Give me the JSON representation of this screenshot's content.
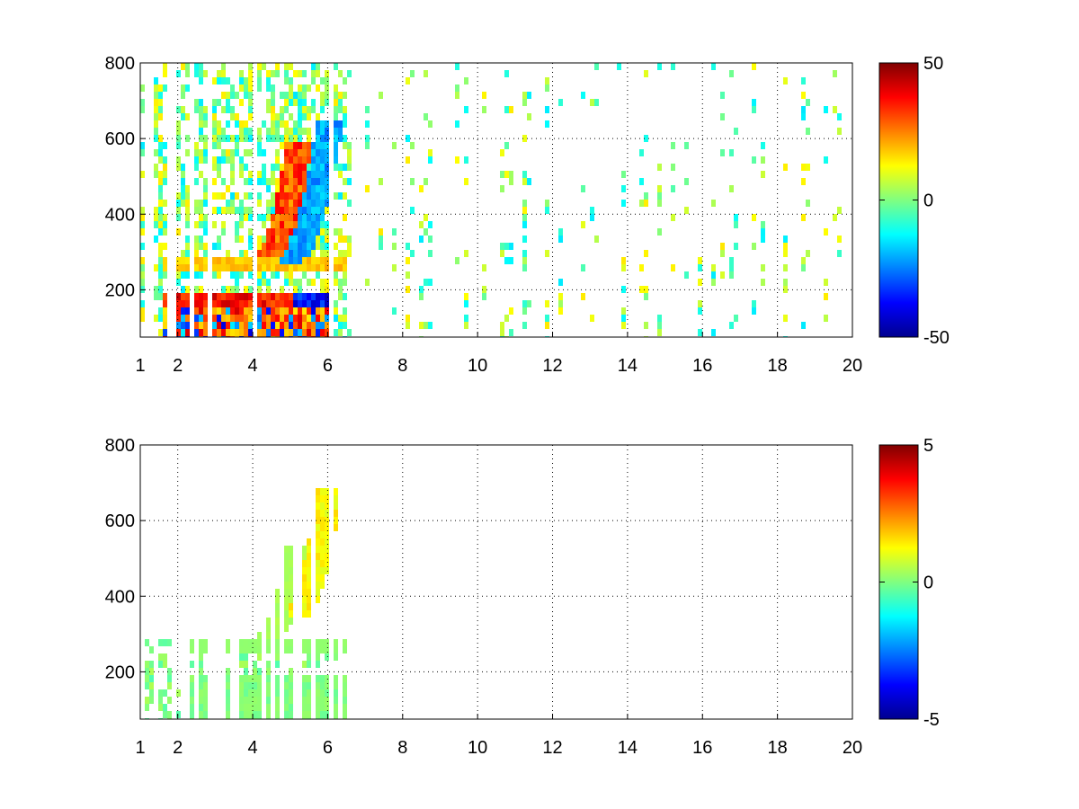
{
  "chart_data": [
    {
      "type": "heatmap",
      "title": "",
      "xlabel": "",
      "ylabel": "",
      "xlim": [
        1,
        20
      ],
      "ylim": [
        75,
        800
      ],
      "xticks": [
        1,
        2,
        4,
        6,
        8,
        10,
        12,
        14,
        16,
        18,
        20
      ],
      "xtick_labels": [
        "1",
        "2",
        "4",
        "6",
        "8",
        "10",
        "12",
        "14",
        "16",
        "18",
        "20"
      ],
      "yticks": [
        200,
        400,
        600,
        800
      ],
      "ytick_labels": [
        "200",
        "400",
        "600",
        "800"
      ],
      "grid": true,
      "colormap": "jet",
      "clim": [
        -50,
        50
      ],
      "colorbar_ticks": [
        -50,
        0,
        50
      ],
      "colorbar_labels": [
        "-50",
        "0",
        "50"
      ],
      "features": [
        {
          "kind": "band",
          "y": 180,
          "x_range": [
            1.5,
            5.5
          ],
          "value": 40
        },
        {
          "kind": "band",
          "y": 180,
          "x_range": [
            5.0,
            6.0
          ],
          "value": -40
        },
        {
          "kind": "band",
          "y": 275,
          "x_range": [
            1.5,
            6.5
          ],
          "value": 20
        },
        {
          "kind": "region",
          "x_range": [
            1.5,
            6.0
          ],
          "y_range": [
            75,
            170
          ],
          "value": 35
        },
        {
          "kind": "curve",
          "x_range": [
            4.2,
            5.2
          ],
          "y_range": [
            290,
            600
          ],
          "value": 35
        },
        {
          "kind": "curve",
          "x_range": [
            4.8,
            6.0
          ],
          "y_range": [
            280,
            650
          ],
          "value": -25
        }
      ]
    },
    {
      "type": "heatmap",
      "title": "",
      "xlabel": "",
      "ylabel": "",
      "xlim": [
        1,
        20
      ],
      "ylim": [
        75,
        800
      ],
      "xticks": [
        1,
        2,
        4,
        6,
        8,
        10,
        12,
        14,
        16,
        18,
        20
      ],
      "xtick_labels": [
        "1",
        "2",
        "4",
        "6",
        "8",
        "10",
        "12",
        "14",
        "16",
        "18",
        "20"
      ],
      "yticks": [
        200,
        400,
        600,
        800
      ],
      "ytick_labels": [
        "200",
        "400",
        "600",
        "800"
      ],
      "grid": true,
      "colormap": "jet",
      "clim": [
        -5,
        5
      ],
      "colorbar_ticks": [
        -5,
        0,
        5
      ],
      "colorbar_labels": [
        "-5",
        "0",
        "5"
      ],
      "features": [
        {
          "kind": "region",
          "x_range": [
            2.0,
            6.4
          ],
          "y_range": [
            75,
            200
          ],
          "value": 0.2
        },
        {
          "kind": "band",
          "y": 275,
          "x_range": [
            2.0,
            6.5
          ],
          "value": 0.2
        },
        {
          "kind": "curve",
          "x_range": [
            4.3,
            5.2
          ],
          "y_range": [
            300,
            550
          ],
          "value": 0.5
        },
        {
          "kind": "curve",
          "x_range": [
            5.0,
            6.0
          ],
          "y_range": [
            350,
            700
          ],
          "value": 1.5
        }
      ]
    }
  ]
}
